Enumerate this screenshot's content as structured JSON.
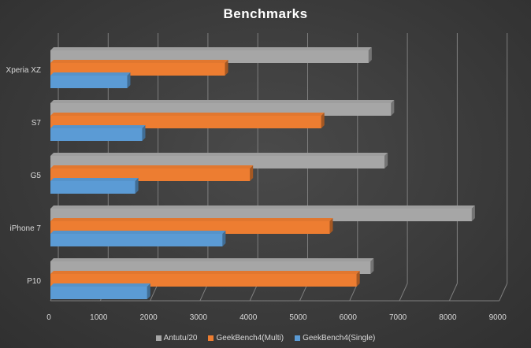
{
  "chart_data": {
    "type": "bar",
    "orientation": "horizontal",
    "title": "Benchmarks",
    "categories": [
      "Xperia XZ",
      "S7",
      "G5",
      "iPhone 7",
      "P10"
    ],
    "series": [
      {
        "name": "Antutu/20",
        "color": "#a6a6a6",
        "values": [
          6380,
          6830,
          6700,
          8450,
          6420
        ]
      },
      {
        "name": "GeekBench4(Multi)",
        "color": "#ed7d31",
        "values": [
          3500,
          5430,
          4000,
          5600,
          6140
        ]
      },
      {
        "name": "GeekBench4(Single)",
        "color": "#5b9bd5",
        "values": [
          1540,
          1840,
          1700,
          3450,
          1940
        ]
      }
    ],
    "x_ticks": [
      "0",
      "1000",
      "2000",
      "3000",
      "4000",
      "5000",
      "6000",
      "7000",
      "8000",
      "9000"
    ],
    "xlim": [
      0,
      9000
    ],
    "legend_position": "bottom",
    "grid": true
  }
}
